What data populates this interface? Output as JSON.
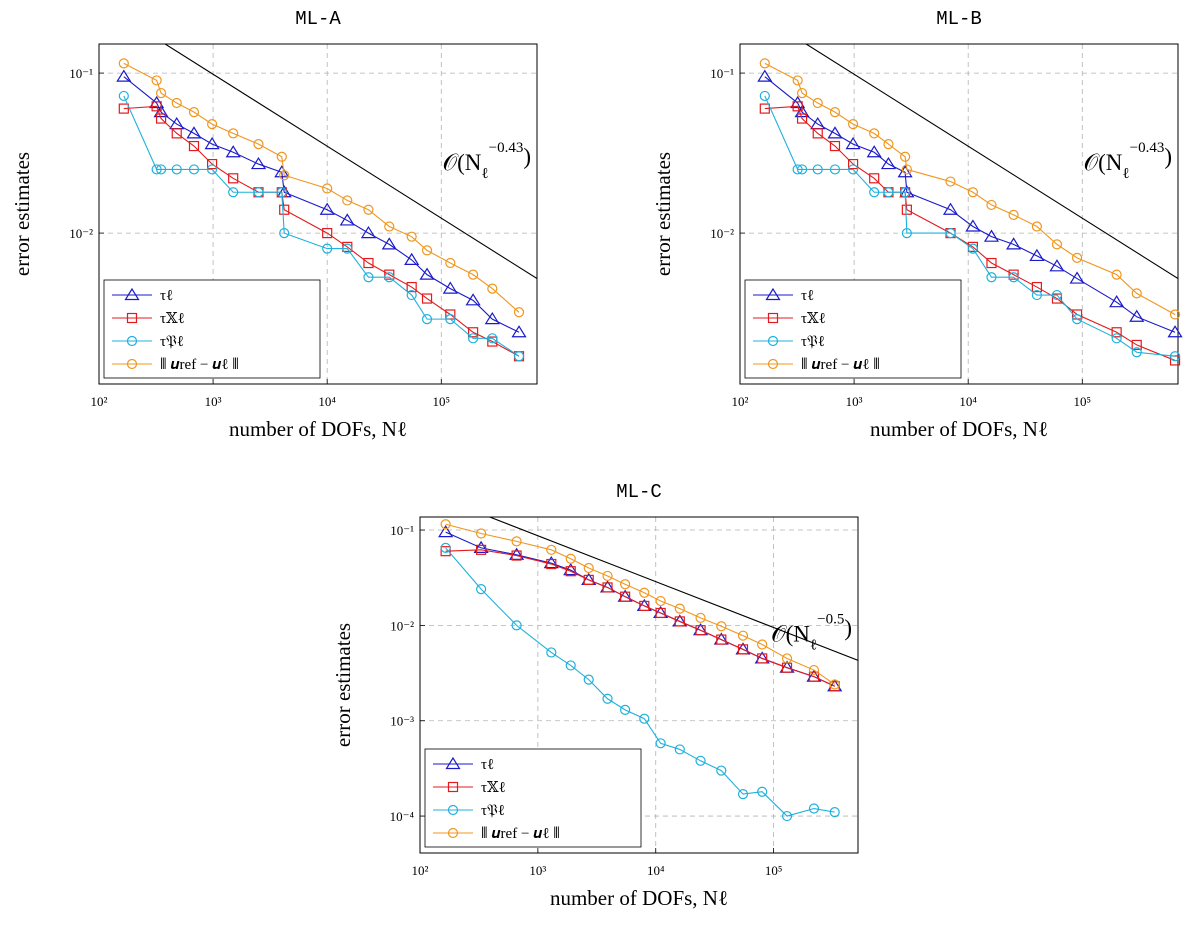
{
  "chart_data": [
    {
      "type": "line",
      "title": "ML-A",
      "xlabel": "number of DOFs, Nℓ",
      "ylabel": "error estimates",
      "xscale": "log",
      "yscale": "log",
      "grid": true,
      "legend": "lower left",
      "xlim": [
        100,
        690000
      ],
      "ylim": [
        0.00114,
        0.152
      ],
      "xticks": [
        {
          "value": 100,
          "label": "10²"
        },
        {
          "value": 1000,
          "label": "10³"
        },
        {
          "value": 10000,
          "label": "10⁴"
        },
        {
          "value": 100000,
          "label": "10⁵"
        }
      ],
      "yticks": [
        {
          "value": 0.01,
          "label": "10⁻²"
        },
        {
          "value": 0.1,
          "label": "10⁻¹"
        }
      ],
      "annotation": {
        "base": "𝒪(N",
        "sub": "ℓ",
        "sup": "−0.43",
        "close": ")"
      },
      "reference_line": {
        "color": "#000000",
        "x": [
          380,
          690000
        ],
        "y": [
          0.152,
          0.0052
        ]
      },
      "x": [
        165,
        320,
        350,
        480,
        680,
        980,
        1500,
        2500,
        4000,
        4200,
        10000,
        15000,
        23000,
        35000,
        55000,
        75000,
        120000,
        190000,
        280000,
        480000
      ],
      "series": [
        {
          "name": "τℓ",
          "color": "#1a1acc",
          "marker": "triangle",
          "values": [
            0.095,
            0.065,
            0.057,
            0.048,
            0.042,
            0.036,
            0.032,
            0.027,
            0.024,
            0.018,
            0.014,
            0.012,
            0.01,
            0.0085,
            0.0068,
            0.0055,
            0.0045,
            0.0038,
            0.0029,
            0.0024
          ]
        },
        {
          "name": "τ𝕏ℓ",
          "color": "#e41a1c",
          "marker": "square",
          "values": [
            0.06,
            0.062,
            0.052,
            0.042,
            0.035,
            0.027,
            0.022,
            0.018,
            0.018,
            0.014,
            0.01,
            0.0082,
            0.0065,
            0.0055,
            0.0046,
            0.0039,
            0.0031,
            0.0024,
            0.0021,
            0.0017
          ]
        },
        {
          "name": "τ𝔓ℓ",
          "color": "#1fb0dc",
          "marker": "circle",
          "values": [
            0.072,
            0.025,
            0.025,
            0.025,
            0.025,
            0.025,
            0.018,
            0.018,
            0.018,
            0.01,
            0.008,
            0.008,
            0.0053,
            0.0053,
            0.0041,
            0.0029,
            0.0029,
            0.0022,
            0.0022,
            0.0017
          ]
        },
        {
          "name": "⦀ 𝒖ref − 𝒖ℓ ⦀",
          "color": "#f0961e",
          "marker": "circle",
          "values": [
            0.115,
            0.09,
            0.075,
            0.065,
            0.057,
            0.048,
            0.042,
            0.036,
            0.03,
            0.023,
            0.019,
            0.016,
            0.014,
            0.011,
            0.0095,
            0.0078,
            0.0065,
            0.0055,
            0.0045,
            0.0032
          ]
        }
      ]
    },
    {
      "type": "line",
      "title": "ML-B",
      "xlabel": "number of DOFs, Nℓ",
      "ylabel": "error estimates",
      "xscale": "log",
      "yscale": "log",
      "grid": true,
      "legend": "lower left",
      "xlim": [
        100,
        690000
      ],
      "ylim": [
        0.00114,
        0.152
      ],
      "xticks": [
        {
          "value": 100,
          "label": "10²"
        },
        {
          "value": 1000,
          "label": "10³"
        },
        {
          "value": 10000,
          "label": "10⁴"
        },
        {
          "value": 100000,
          "label": "10⁵"
        }
      ],
      "yticks": [
        {
          "value": 0.01,
          "label": "10⁻²"
        },
        {
          "value": 0.1,
          "label": "10⁻¹"
        }
      ],
      "annotation": {
        "base": "𝒪(N",
        "sub": "ℓ",
        "sup": "−0.43",
        "close": ")"
      },
      "reference_line": {
        "color": "#000000",
        "x": [
          380,
          690000
        ],
        "y": [
          0.152,
          0.0052
        ]
      },
      "x": [
        165,
        320,
        350,
        480,
        680,
        980,
        1500,
        2000,
        2800,
        2900,
        7000,
        11000,
        16000,
        25000,
        40000,
        60000,
        90000,
        200000,
        300000,
        650000
      ],
      "series": [
        {
          "name": "τℓ",
          "color": "#1a1acc",
          "marker": "triangle",
          "values": [
            0.095,
            0.065,
            0.057,
            0.048,
            0.042,
            0.036,
            0.032,
            0.027,
            0.024,
            0.018,
            0.014,
            0.011,
            0.0095,
            0.0085,
            0.0072,
            0.0062,
            0.0052,
            0.0037,
            0.003,
            0.0024
          ]
        },
        {
          "name": "τ𝕏ℓ",
          "color": "#e41a1c",
          "marker": "square",
          "values": [
            0.06,
            0.062,
            0.052,
            0.042,
            0.035,
            0.027,
            0.022,
            0.018,
            0.018,
            0.014,
            0.01,
            0.0082,
            0.0065,
            0.0055,
            0.0046,
            0.0039,
            0.0031,
            0.0024,
            0.002,
            0.0016
          ]
        },
        {
          "name": "τ𝔓ℓ",
          "color": "#1fb0dc",
          "marker": "circle",
          "values": [
            0.072,
            0.025,
            0.025,
            0.025,
            0.025,
            0.025,
            0.018,
            0.018,
            0.018,
            0.01,
            0.01,
            0.008,
            0.0053,
            0.0053,
            0.0041,
            0.0041,
            0.0029,
            0.0022,
            0.0018,
            0.0017
          ]
        },
        {
          "name": "⦀ 𝒖ref − 𝒖ℓ ⦀",
          "color": "#f0961e",
          "marker": "circle",
          "values": [
            0.115,
            0.09,
            0.075,
            0.065,
            0.057,
            0.048,
            0.042,
            0.036,
            0.03,
            0.025,
            0.021,
            0.018,
            0.015,
            0.013,
            0.011,
            0.0085,
            0.007,
            0.0055,
            0.0042,
            0.0031
          ]
        }
      ]
    },
    {
      "type": "line",
      "title": "ML-C",
      "xlabel": "number of DOFs, Nℓ",
      "ylabel": "error estimates",
      "xscale": "log",
      "yscale": "log",
      "grid": true,
      "legend": "lower left",
      "xlim": [
        100,
        520000
      ],
      "ylim": [
        4.1e-05,
        0.137
      ],
      "xticks": [
        {
          "value": 100,
          "label": "10²"
        },
        {
          "value": 1000,
          "label": "10³"
        },
        {
          "value": 10000,
          "label": "10⁴"
        },
        {
          "value": 100000,
          "label": "10⁵"
        }
      ],
      "yticks": [
        {
          "value": 0.0001,
          "label": "10⁻⁴"
        },
        {
          "value": 0.001,
          "label": "10⁻³"
        },
        {
          "value": 0.01,
          "label": "10⁻²"
        },
        {
          "value": 0.1,
          "label": "10⁻¹"
        }
      ],
      "annotation": {
        "base": "𝒪(N",
        "sub": "ℓ",
        "sup": "−0.5",
        "close": ")"
      },
      "reference_line": {
        "color": "#000000",
        "x": [
          390,
          520000
        ],
        "y": [
          0.137,
          0.0043
        ]
      },
      "x": [
        165,
        330,
        660,
        1300,
        1900,
        2700,
        3900,
        5500,
        8000,
        11000,
        16000,
        24000,
        36000,
        55000,
        80000,
        130000,
        220000,
        330000
      ],
      "series": [
        {
          "name": "τℓ",
          "color": "#1a1acc",
          "marker": "triangle",
          "values": [
            0.095,
            0.065,
            0.055,
            0.045,
            0.038,
            0.03,
            0.025,
            0.02,
            0.016,
            0.0135,
            0.011,
            0.0089,
            0.0071,
            0.0056,
            0.0045,
            0.0036,
            0.0029,
            0.0023
          ]
        },
        {
          "name": "τ𝕏ℓ",
          "color": "#e41a1c",
          "marker": "square",
          "values": [
            0.06,
            0.062,
            0.054,
            0.044,
            0.037,
            0.03,
            0.025,
            0.02,
            0.016,
            0.0135,
            0.011,
            0.0089,
            0.0071,
            0.0056,
            0.0045,
            0.0036,
            0.0029,
            0.0023
          ]
        },
        {
          "name": "τ𝔓ℓ",
          "color": "#1fb0dc",
          "marker": "circle",
          "values": [
            0.065,
            0.024,
            0.01,
            0.0052,
            0.0038,
            0.0027,
            0.0017,
            0.0013,
            0.00105,
            0.00058,
            0.0005,
            0.00038,
            0.0003,
            0.00017,
            0.00018,
            0.0001,
            0.00012,
            0.00011
          ]
        },
        {
          "name": "⦀ 𝒖ref − 𝒖ℓ ⦀",
          "color": "#f0961e",
          "marker": "circle",
          "values": [
            0.115,
            0.092,
            0.076,
            0.062,
            0.05,
            0.04,
            0.033,
            0.027,
            0.022,
            0.018,
            0.015,
            0.012,
            0.0098,
            0.0078,
            0.0063,
            0.0045,
            0.0034,
            0.0024
          ]
        }
      ]
    }
  ]
}
